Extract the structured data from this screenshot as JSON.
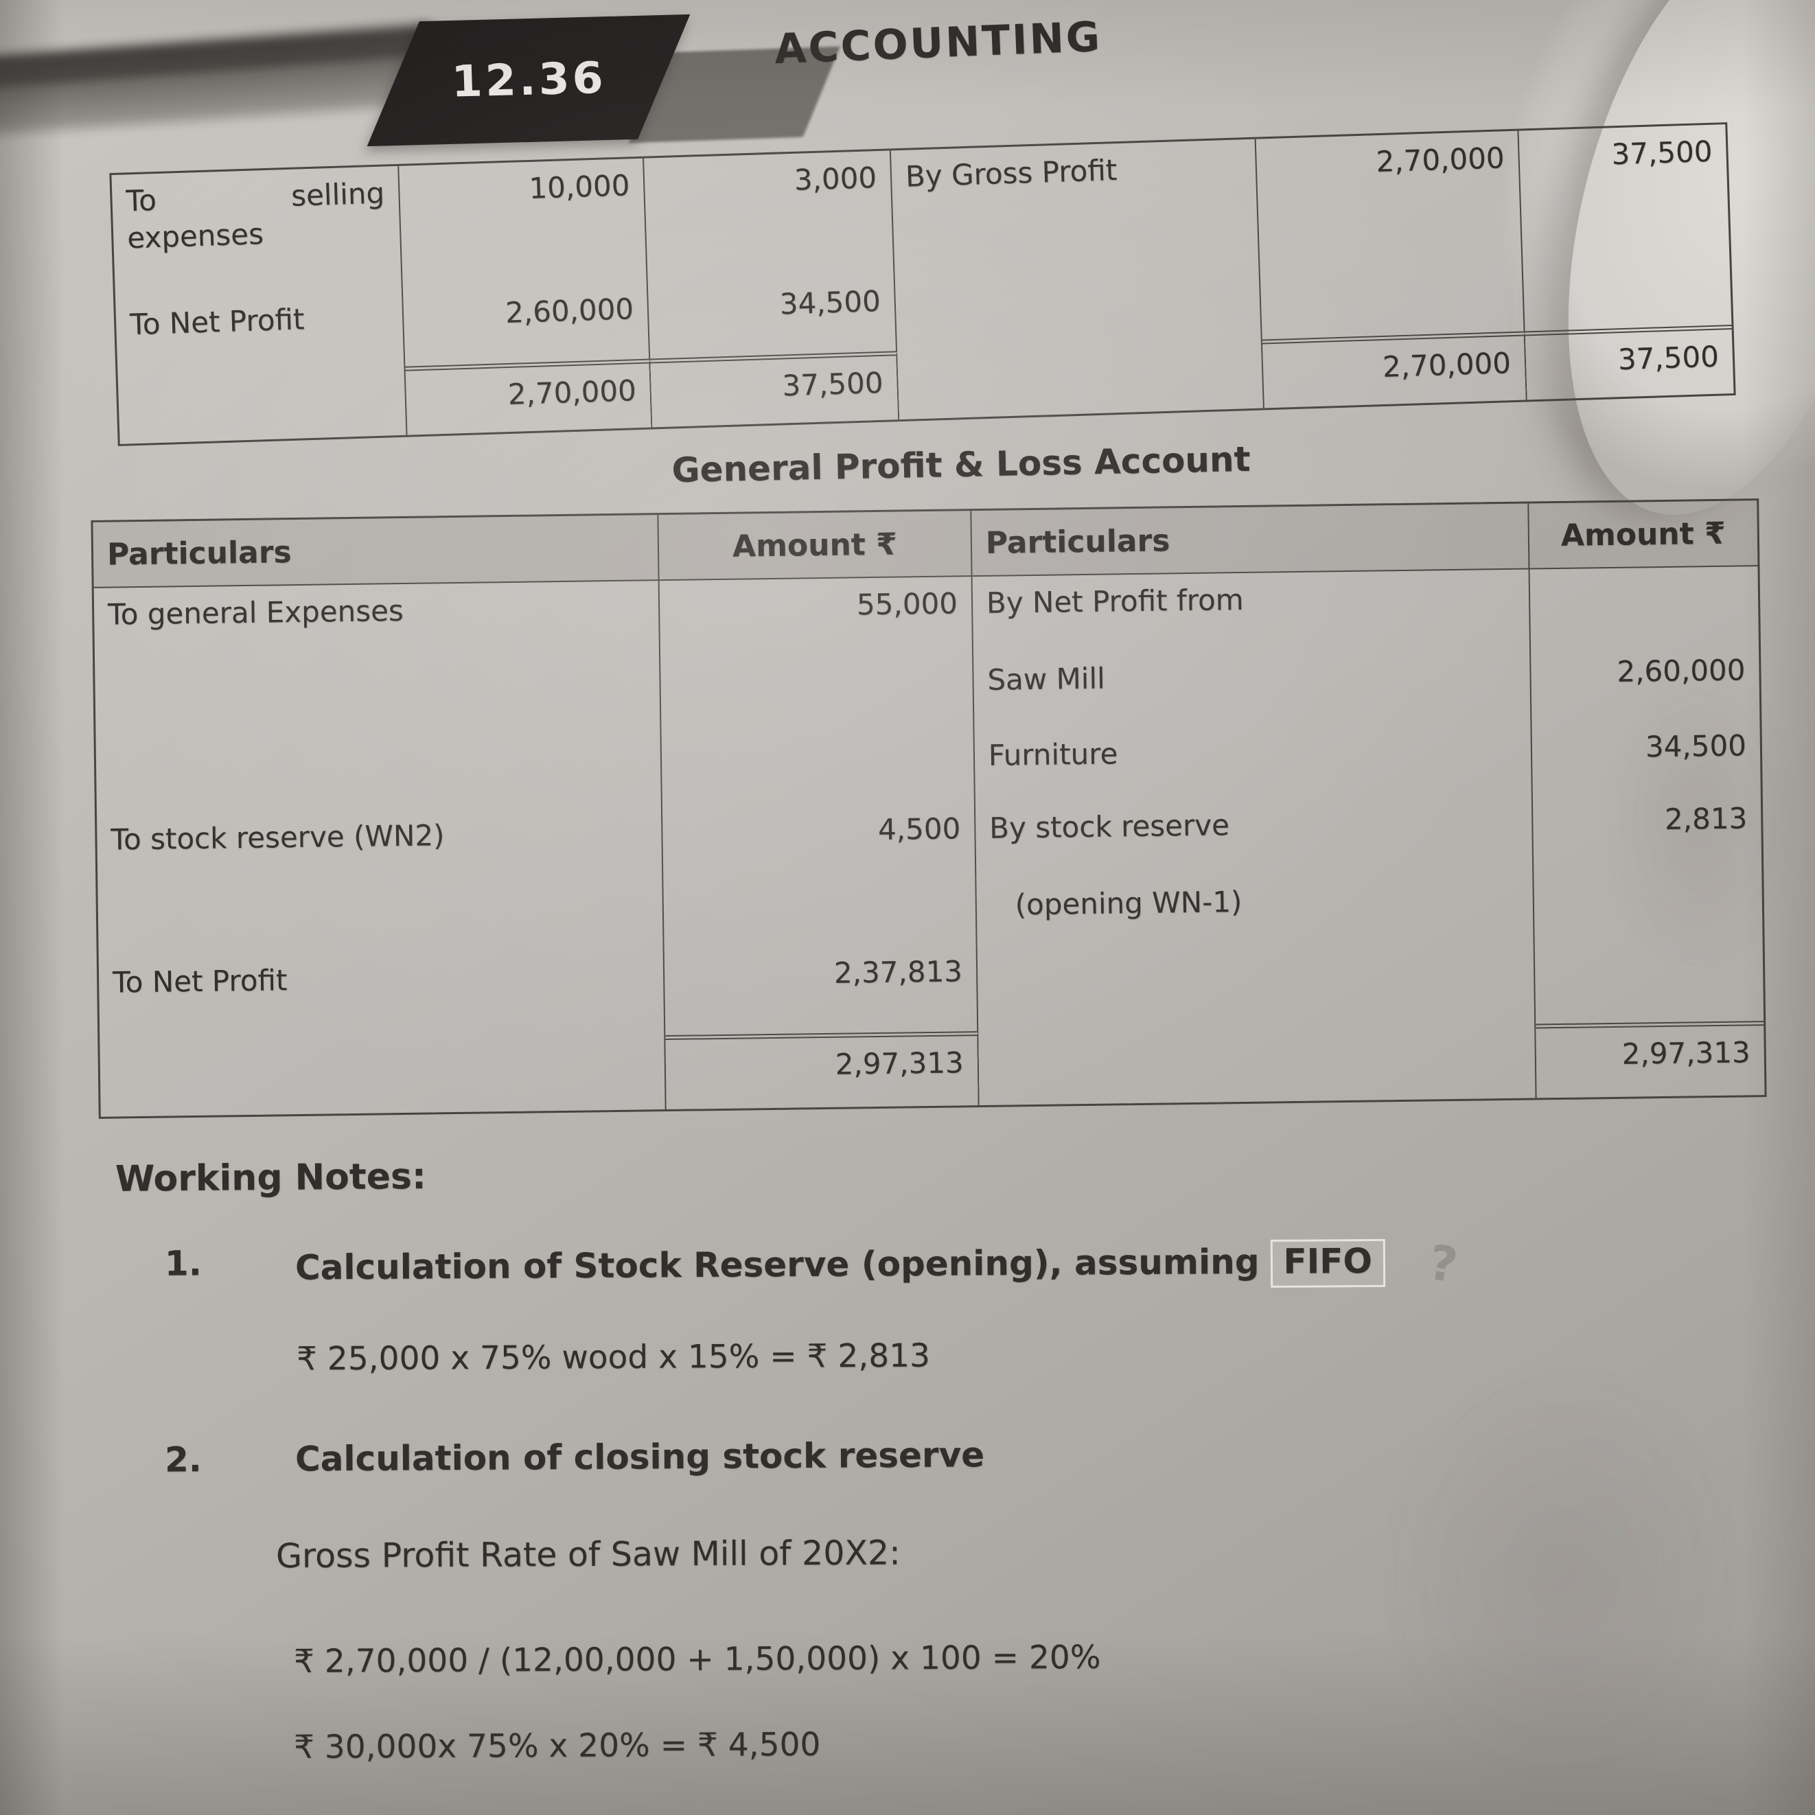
{
  "page": {
    "number": "12.36",
    "book_title": "ACCOUNTING"
  },
  "table1": {
    "rows": [
      [
        "To selling expenses",
        "10,000",
        "3,000",
        "By Gross Profit",
        "2,70,000",
        "37,500"
      ],
      [
        "To Net Profit",
        "2,60,000",
        "34,500",
        "",
        "",
        ""
      ],
      [
        "",
        "2,70,000",
        "37,500",
        "",
        "2,70,000",
        "37,500"
      ]
    ]
  },
  "section_title": "General Profit & Loss Account",
  "table2": {
    "headers": [
      "Particulars",
      "Amount ₹",
      "Particulars",
      "Amount ₹"
    ],
    "rows": [
      [
        "To general Expenses",
        "55,000",
        "By Net Profit from",
        ""
      ],
      [
        "",
        "",
        "Saw Mill",
        "2,60,000"
      ],
      [
        "",
        "",
        "Furniture",
        "34,500"
      ],
      [
        "To stock reserve (WN2)",
        "4,500",
        "By stock reserve",
        "2,813"
      ],
      [
        "",
        "",
        "(opening WN-1)",
        ""
      ],
      [
        "To Net Profit",
        "2,37,813",
        "",
        ""
      ],
      [
        "",
        "2,97,313",
        "",
        "2,97,313"
      ]
    ]
  },
  "working_notes": {
    "heading": "Working Notes:",
    "note1": {
      "number": "1.",
      "title": "Calculation of Stock Reserve (opening), assuming",
      "highlight": "FIFO",
      "watermark": "?",
      "formula": "₹ 25,000 x 75% wood x 15% = ₹ 2,813"
    },
    "note2": {
      "number": "2.",
      "title": "Calculation of closing stock reserve",
      "subtitle": "Gross Profit Rate of Saw Mill of 20X2:",
      "formula1": "₹ 2,70,000 / (12,00,000 + 1,50,000) x 100 = 20%",
      "formula2": "₹ 30,000x 75% x 20% = ₹ 4,500"
    }
  }
}
